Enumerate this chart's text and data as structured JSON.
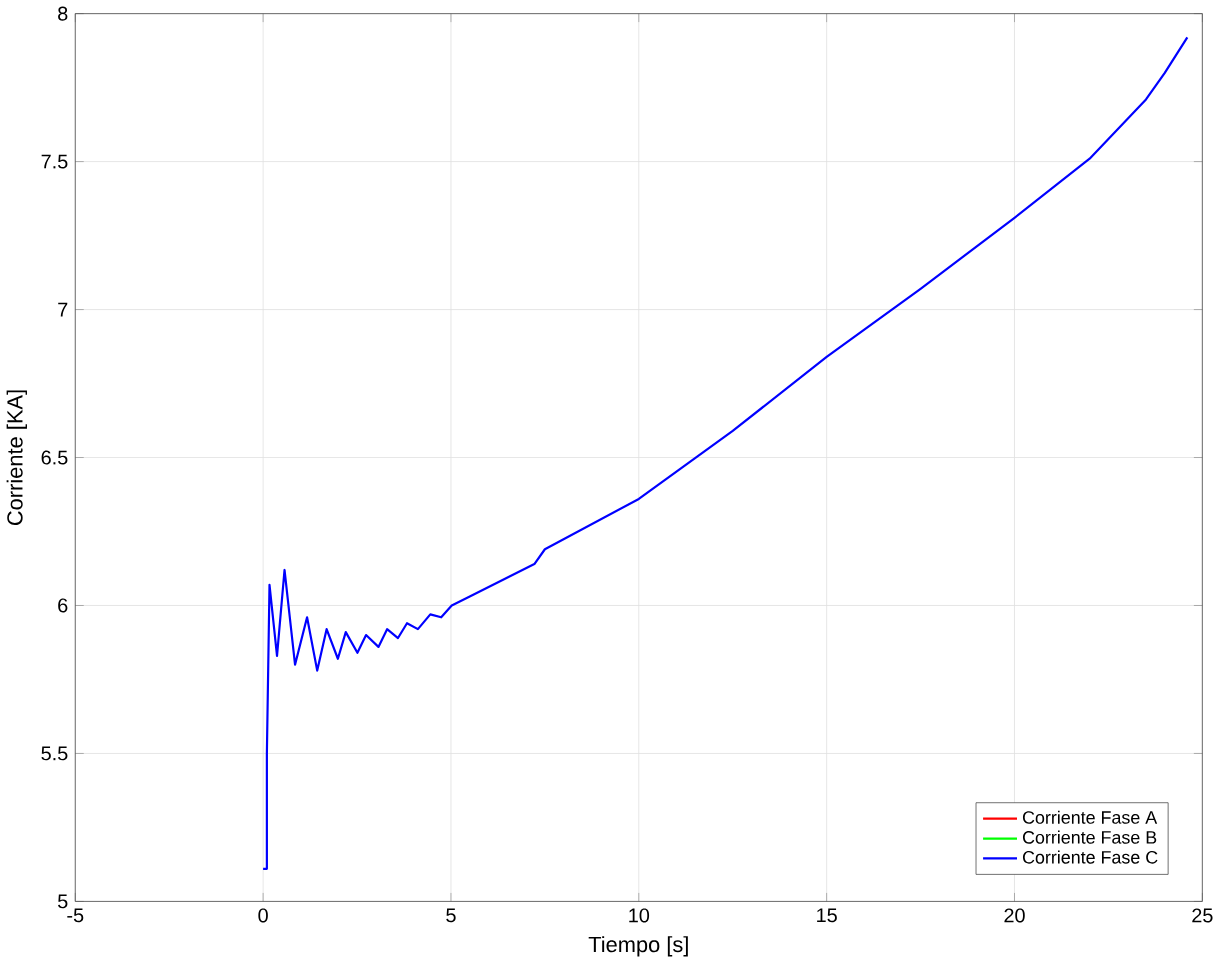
{
  "chart_data": {
    "type": "line",
    "xlabel": "Tiempo [s]",
    "ylabel": "Corriente [KA]",
    "xlim": [
      -5,
      25
    ],
    "ylim": [
      5,
      8
    ],
    "xticks": [
      -5,
      0,
      5,
      10,
      15,
      20,
      25
    ],
    "yticks": [
      5,
      5.5,
      6,
      6.5,
      7,
      7.5,
      8
    ],
    "grid": true,
    "legend": "bottom right",
    "line_style": "solid",
    "series": [
      {
        "name": "Corriente Fase A",
        "color": "#ff0000"
      },
      {
        "name": "Corriente Fase B",
        "color": "#00ff00"
      },
      {
        "name": "Corriente Fase C",
        "color": "#0000ff",
        "x": [
          0,
          0.1,
          0.1,
          0.17,
          0.37,
          0.57,
          0.85,
          1.17,
          1.44,
          1.69,
          1.99,
          2.2,
          2.51,
          2.74,
          3.07,
          3.3,
          3.59,
          3.83,
          4.12,
          4.45,
          4.74,
          5.02,
          5.5,
          7.22,
          7.5,
          10,
          12.5,
          15,
          17.5,
          20,
          22,
          23.5,
          24,
          24.6
        ],
        "values": [
          5.11,
          5.11,
          5.5,
          6.07,
          5.83,
          6.12,
          5.8,
          5.96,
          5.78,
          5.92,
          5.82,
          5.91,
          5.84,
          5.9,
          5.86,
          5.92,
          5.89,
          5.94,
          5.92,
          5.97,
          5.96,
          6.0,
          6.03,
          6.14,
          6.19,
          6.36,
          6.59,
          6.84,
          7.07,
          7.31,
          7.51,
          7.71,
          7.8,
          7.92
        ]
      }
    ]
  }
}
